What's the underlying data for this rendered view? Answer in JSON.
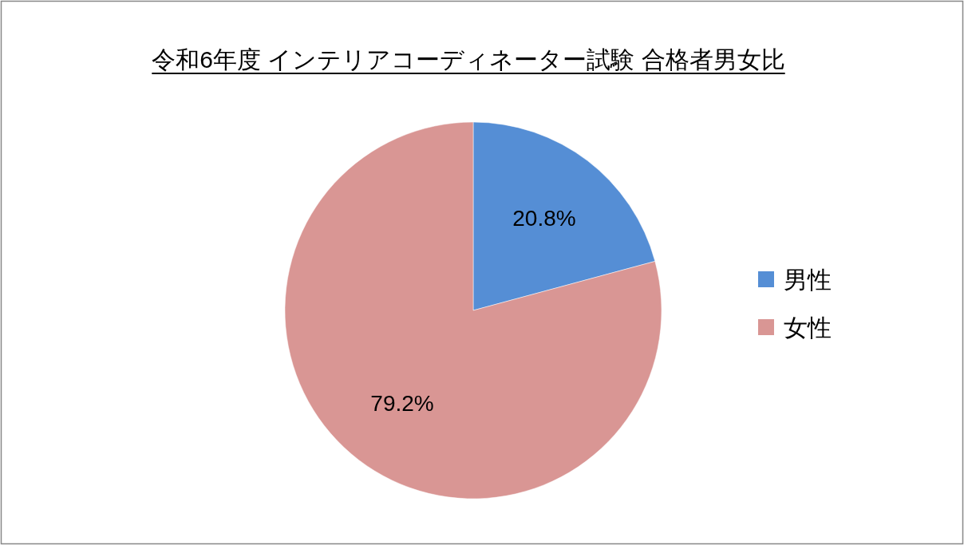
{
  "chart_data": {
    "type": "pie",
    "title": "令和6年度 インテリアコーディネーター試験 合格者男女比",
    "categories": [
      "男性",
      "女性"
    ],
    "values": [
      20.8,
      79.2
    ],
    "value_labels": [
      "20.8%",
      "79.2%"
    ],
    "colors": [
      "#558ed5",
      "#d99694"
    ],
    "legend": "right"
  }
}
